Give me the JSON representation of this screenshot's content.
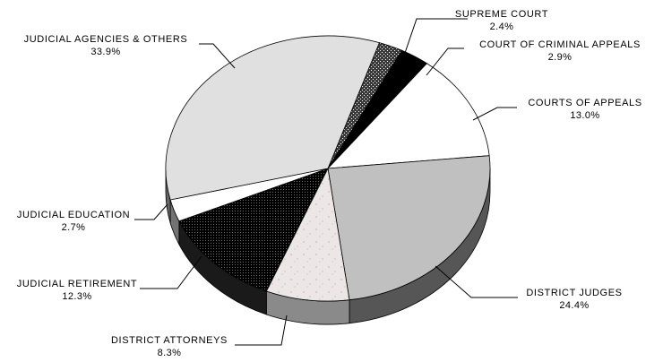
{
  "chart_data": {
    "type": "pie",
    "title": "",
    "style": "3d-tilted",
    "slices": [
      {
        "label": "SUPREME COURT",
        "value": 2.4,
        "value_label": "2.4%",
        "fill": "pat-dots"
      },
      {
        "label": "COURT OF CRIMINAL APPEALS",
        "value": 2.9,
        "value_label": "2.9%",
        "fill": "#000000"
      },
      {
        "label": "COURTS OF APPEALS",
        "value": 13.0,
        "value_label": "13.0%",
        "fill": "#ffffff"
      },
      {
        "label": "DISTRICT JUDGES",
        "value": 24.4,
        "value_label": "24.4%",
        "fill": "#c0c0c0"
      },
      {
        "label": "DISTRICT ATTORNEYS",
        "value": 8.3,
        "value_label": "8.3%",
        "fill": "pat-marble"
      },
      {
        "label": "JUDICIAL RETIREMENT",
        "value": 12.3,
        "value_label": "12.3%",
        "fill": "pat-dark"
      },
      {
        "label": "JUDICIAL EDUCATION",
        "value": 2.7,
        "value_label": "2.7%",
        "fill": "#ffffff"
      },
      {
        "label": "JUDICIAL AGENCIES & OTHERS",
        "value": 33.9,
        "value_label": "33.9%",
        "fill": "#e0e0e0"
      }
    ]
  }
}
